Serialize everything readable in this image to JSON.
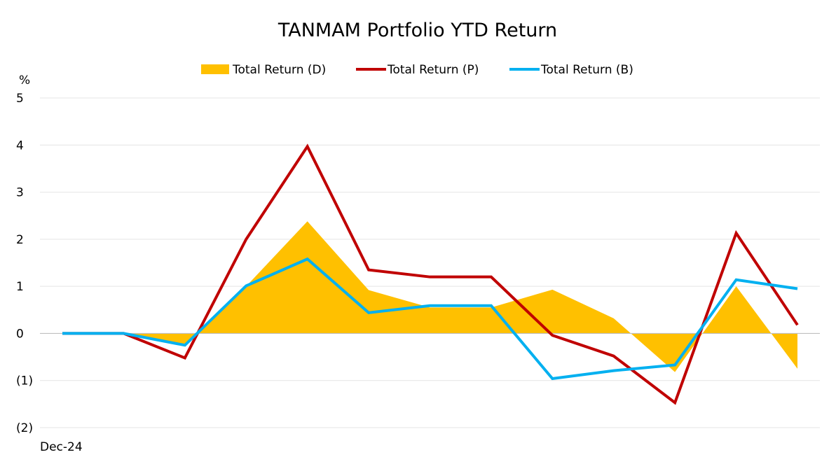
{
  "chart_data": {
    "type": "line",
    "title": "TANMAM Portfolio YTD Return",
    "ylabel": "%",
    "ylim": [
      -2,
      5
    ],
    "y_ticks": [
      {
        "value": 5,
        "label": "5"
      },
      {
        "value": 4,
        "label": "4"
      },
      {
        "value": 3,
        "label": "3"
      },
      {
        "value": 2,
        "label": "2"
      },
      {
        "value": 1,
        "label": "1"
      },
      {
        "value": 0,
        "label": "0"
      },
      {
        "value": -1,
        "label": "(1)"
      },
      {
        "value": -2,
        "label": "(2)"
      }
    ],
    "x_tick_labels": [
      "Dec-24"
    ],
    "grid": true,
    "legend_position": "top",
    "negative_tick_color": "#ff0000",
    "series": [
      {
        "name": "Total Return (D)",
        "kind": "area",
        "color": "#ffc000",
        "values": [
          0,
          0,
          -0.25,
          1.0,
          2.38,
          0.92,
          0.55,
          0.55,
          0.93,
          0.32,
          -0.82,
          1.0,
          -0.75
        ]
      },
      {
        "name": "Total Return (P)",
        "kind": "line",
        "color": "#c00000",
        "values": [
          0,
          0,
          -0.52,
          2.0,
          3.97,
          1.35,
          1.2,
          1.2,
          -0.04,
          -0.48,
          -1.47,
          2.13,
          0.18
        ]
      },
      {
        "name": "Total Return (B)",
        "kind": "line",
        "color": "#00b0f0",
        "values": [
          0,
          0,
          -0.25,
          1.01,
          1.58,
          0.44,
          0.59,
          0.59,
          -0.96,
          -0.79,
          -0.67,
          1.14,
          0.95
        ]
      }
    ]
  }
}
